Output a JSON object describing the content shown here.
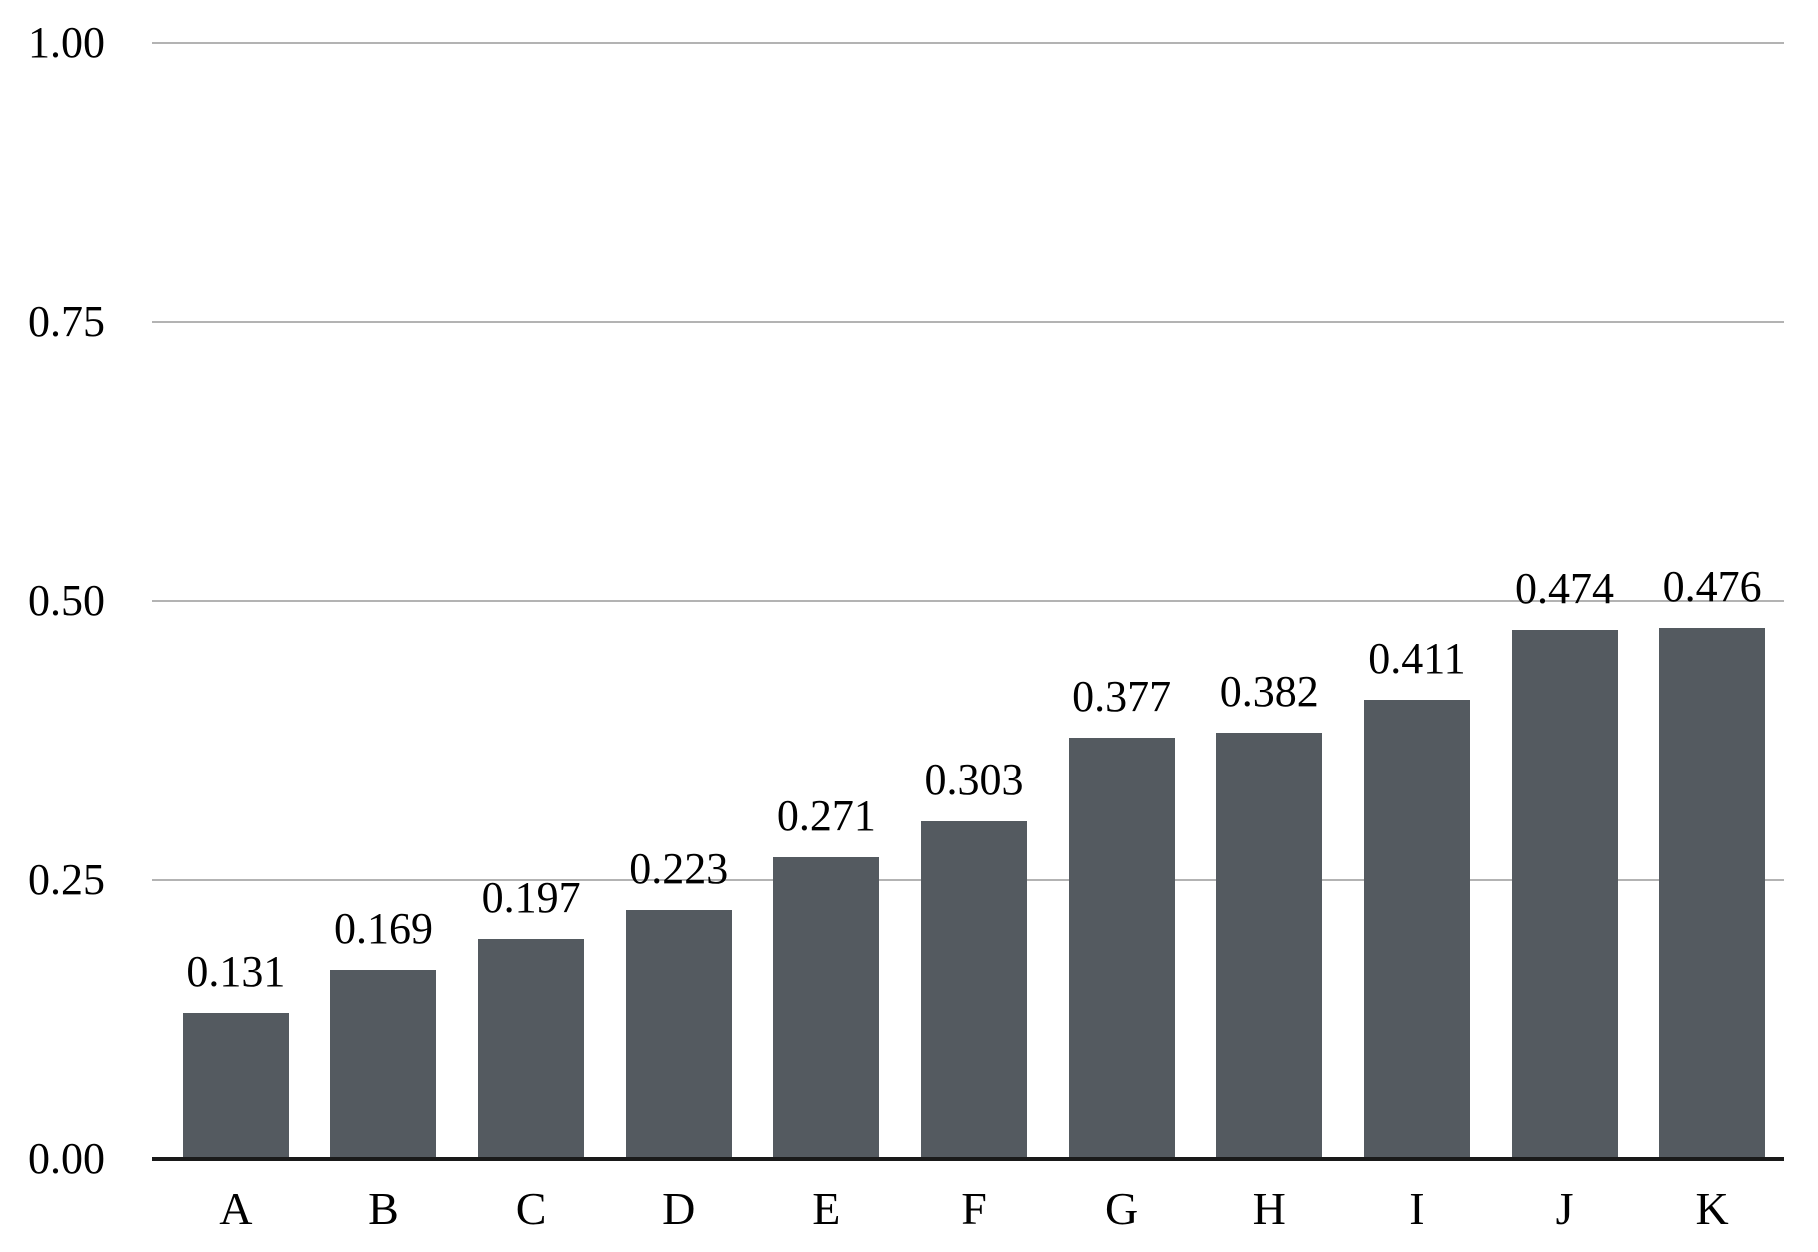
{
  "chart_data": {
    "type": "bar",
    "title": "",
    "xlabel": "",
    "ylabel": "",
    "categories": [
      "A",
      "B",
      "C",
      "D",
      "E",
      "F",
      "G",
      "H",
      "I",
      "J",
      "K"
    ],
    "values": [
      0.131,
      0.169,
      0.197,
      0.223,
      0.271,
      0.303,
      0.377,
      0.382,
      0.411,
      0.474,
      0.476
    ],
    "value_labels": [
      "0.131",
      "0.169",
      "0.197",
      "0.223",
      "0.271",
      "0.303",
      "0.377",
      "0.382",
      "0.411",
      "0.474",
      "0.476"
    ],
    "ylim": [
      0.0,
      1.0
    ],
    "yticks": [
      {
        "value": 0.0,
        "label": "0.00"
      },
      {
        "value": 0.25,
        "label": "0.25"
      },
      {
        "value": 0.5,
        "label": "0.50"
      },
      {
        "value": 0.75,
        "label": "0.75"
      },
      {
        "value": 1.0,
        "label": "1.00"
      }
    ],
    "grid": true,
    "legend": false,
    "colors": {
      "bar": "#545A60",
      "gridline": "#B3B3B3",
      "axis": "#1A1A1A",
      "text": "#000000",
      "background": "#FFFFFF"
    }
  }
}
